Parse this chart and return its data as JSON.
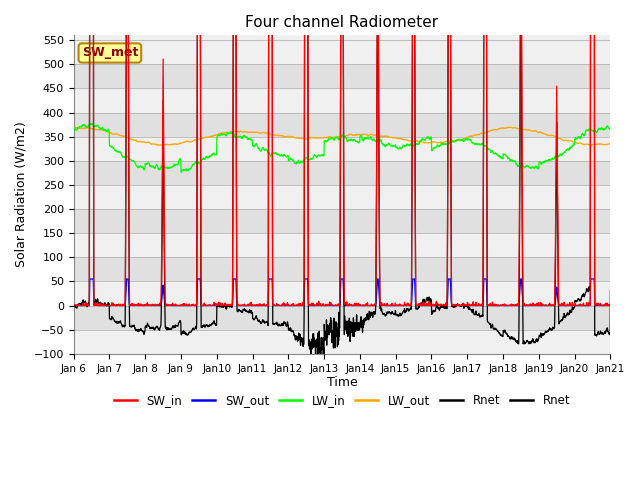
{
  "title": "Four channel Radiometer",
  "xlabel": "Time",
  "ylabel": "Solar Radiation (W/m2)",
  "ylim": [
    -100,
    560
  ],
  "yticks": [
    -100,
    -50,
    0,
    50,
    100,
    150,
    200,
    250,
    300,
    350,
    400,
    450,
    500,
    550
  ],
  "start_day": 6,
  "end_day": 21,
  "n_days": 15,
  "legend_entries": [
    "SW_in",
    "SW_out",
    "LW_in",
    "LW_out",
    "Rnet",
    "Rnet"
  ],
  "legend_colors": [
    "red",
    "blue",
    "lime",
    "orange",
    "black",
    "black"
  ],
  "annotation_text": "SW_met",
  "annotation_color": "#8B0000",
  "annotation_bg": "#FFFF99",
  "annotation_border": "#B8860B",
  "grid_color": "#cccccc",
  "bg_band_light": "#f0f0f0",
  "bg_band_dark": "#e0e0e0"
}
